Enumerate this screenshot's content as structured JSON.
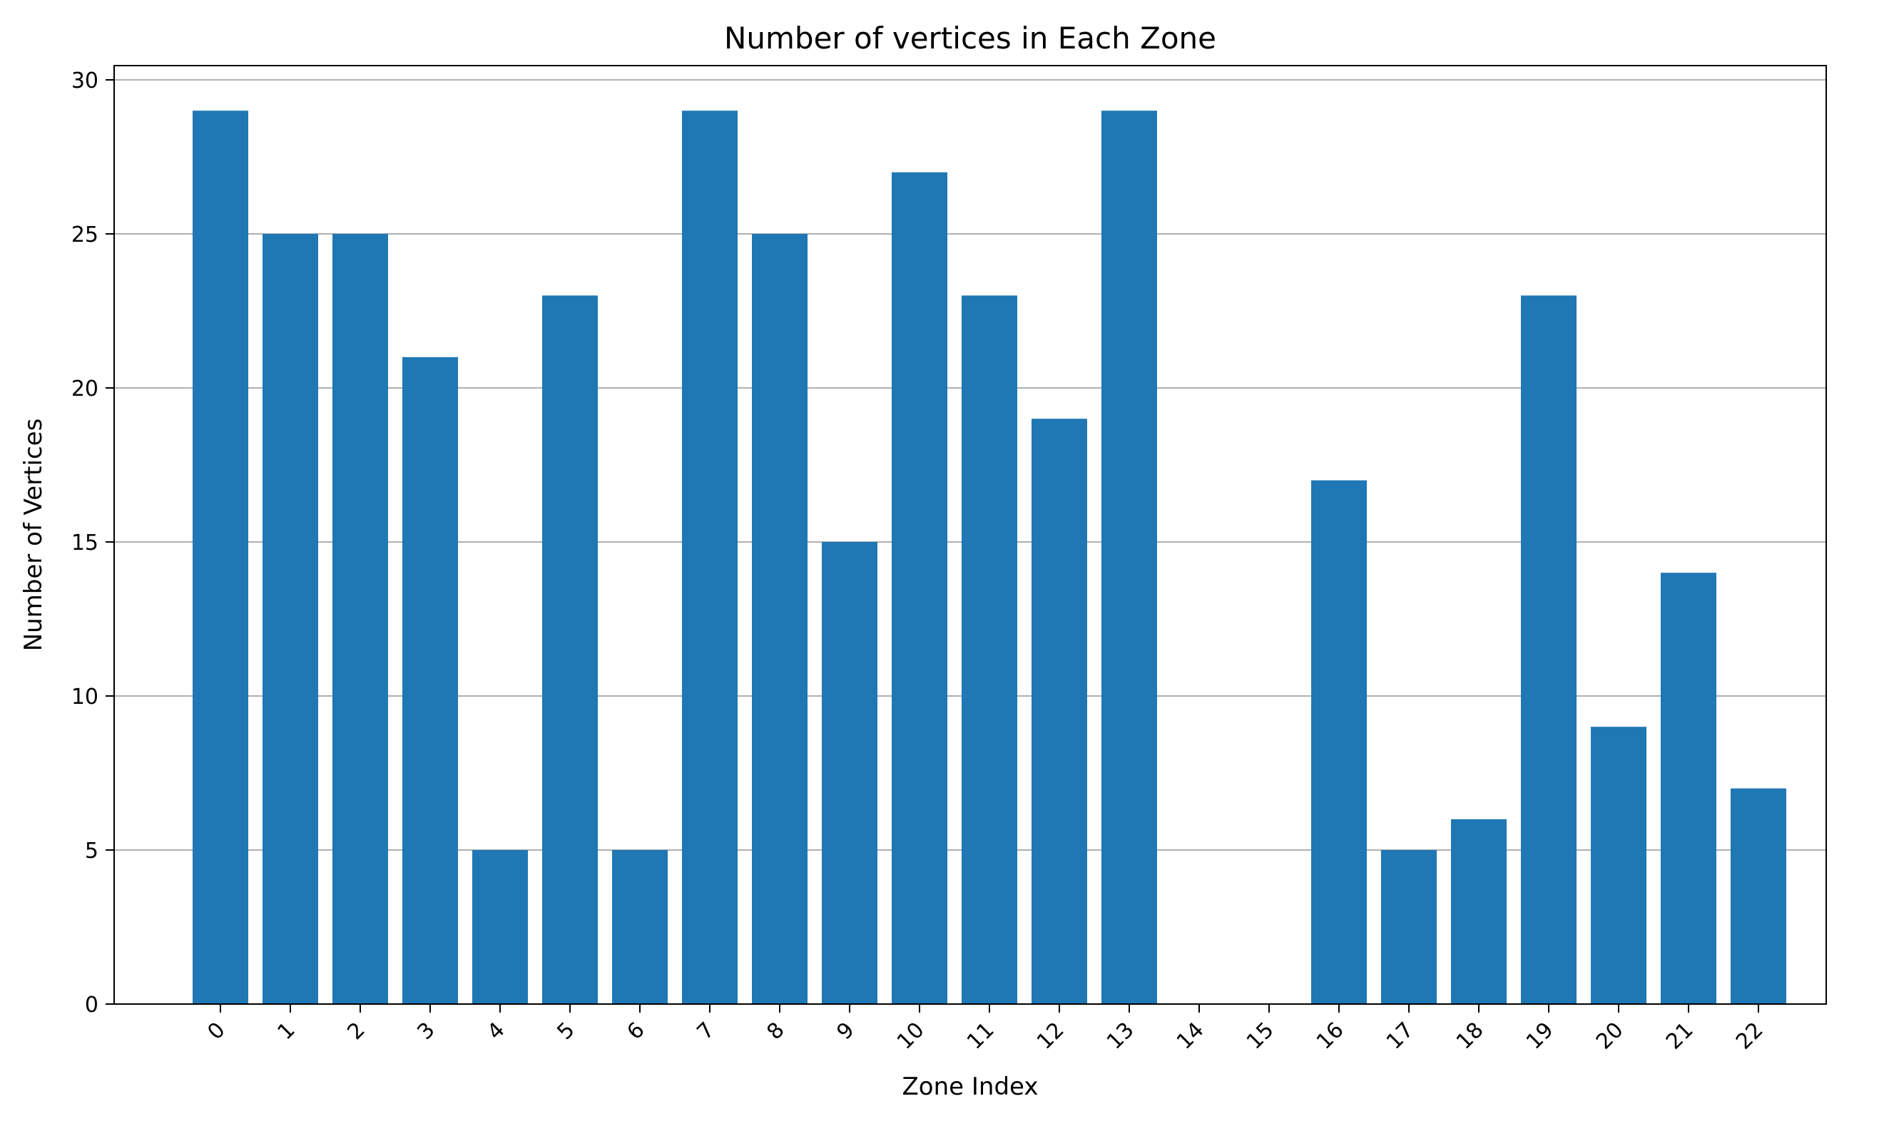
{
  "chart_data": {
    "type": "bar",
    "title": "Number of vertices in Each Zone",
    "xlabel": "Zone Index",
    "ylabel": "Number of Vertices",
    "categories": [
      "0",
      "1",
      "2",
      "3",
      "4",
      "5",
      "6",
      "7",
      "8",
      "9",
      "10",
      "11",
      "12",
      "13",
      "14",
      "15",
      "16",
      "17",
      "18",
      "19",
      "20",
      "21",
      "22"
    ],
    "values": [
      29,
      25,
      25,
      21,
      5,
      23,
      5,
      29,
      25,
      15,
      27,
      23,
      19,
      29,
      0,
      0,
      17,
      5,
      6,
      23,
      9,
      14,
      7
    ],
    "ylim": [
      0,
      30
    ],
    "yticks": [
      "0",
      "5",
      "10",
      "15",
      "20",
      "25",
      "30"
    ],
    "grid": "y",
    "bar_color": "#1f77b4",
    "gridline_color": "#b0b0b0"
  }
}
